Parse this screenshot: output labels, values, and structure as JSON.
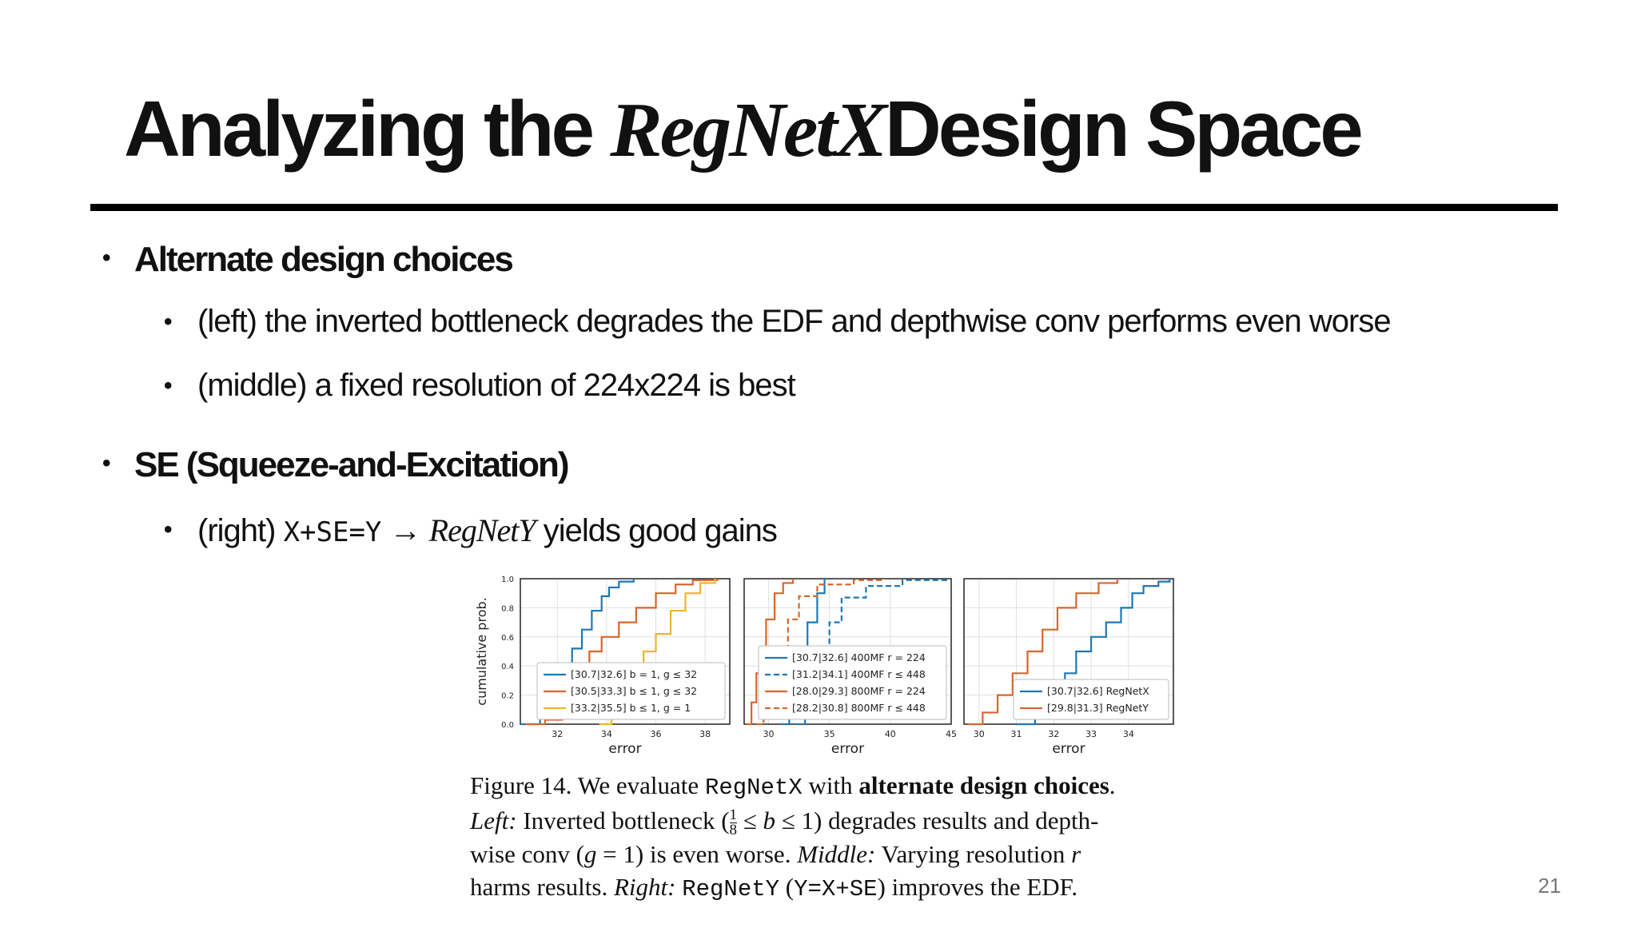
{
  "slide": {
    "title_pre": "Analyzing the ",
    "title_ital": "RegNetX",
    "title_post": "Design Space",
    "bullets": [
      {
        "text": "Alternate design choices"
      },
      {
        "text": "(left) the inverted bottleneck degrades the EDF and depthwise conv performs even worse"
      },
      {
        "text": "(middle) a fixed resolution of 224x224 is best"
      },
      {
        "text": "SE (Squeeze-and-Excitation)"
      },
      {
        "pre": "(right) ",
        "code": "X+SE=Y",
        "arrow": " → ",
        "ital": "RegNetY",
        "post": " yields good gains"
      }
    ],
    "page_number": "21"
  },
  "figure": {
    "caption": {
      "l1_a": "Figure 14. We evaluate ",
      "l1_code": "RegNetX",
      "l1_b": " with ",
      "l1_bold": "alternate design choices",
      "l1_c": ".",
      "l2_it": "Left:",
      "l2_a": " Inverted bottleneck (",
      "l2_frac_num": "1",
      "l2_frac_den": "8",
      "l2_b": " ≤ ",
      "l2_bvar": "b",
      "l2_c": " ≤ 1) degrades results and depth-",
      "l3_a": "wise conv (",
      "l3_g": "g",
      "l3_b": " = 1) is even worse. ",
      "l3_it": "Middle:",
      "l3_c": " Varying resolution ",
      "l3_r": "r",
      "l4_a": "harms results. ",
      "l4_it": "Right:",
      "l4_sp": " ",
      "l4_code": "RegNetY",
      "l4_b": " (",
      "l4_code2": "Y=X+SE",
      "l4_c": ") improves the EDF."
    },
    "colors": {
      "blue": "#1f77b4",
      "orange": "#d9652c",
      "yellow": "#f0b429"
    }
  },
  "chart_data": [
    {
      "type": "line",
      "xlabel": "error",
      "ylabel": "cumulative prob.",
      "xlim": [
        30.5,
        39
      ],
      "ylim": [
        0,
        1
      ],
      "xticks": [
        32,
        34,
        36,
        38
      ],
      "yticks": [
        "0.0",
        "0.2",
        "0.4",
        "0.6",
        "0.8",
        "1.0"
      ],
      "legend": "bottom-right",
      "series": [
        {
          "name": "[30.7|32.6] b = 1, g ≤ 32",
          "color": "#1f77b4",
          "dash": false,
          "x": [
            30.5,
            31.3,
            31.8,
            32.2,
            32.6,
            33.0,
            33.4,
            33.8,
            34.1,
            34.5,
            35.1
          ],
          "y": [
            0.0,
            0.04,
            0.12,
            0.3,
            0.52,
            0.65,
            0.78,
            0.88,
            0.94,
            0.98,
            1.0
          ]
        },
        {
          "name": "[30.5|33.3] b ≤ 1, g ≤ 32",
          "color": "#d9652c",
          "dash": false,
          "x": [
            30.7,
            31.5,
            32.2,
            32.9,
            33.3,
            33.8,
            34.5,
            35.2,
            36.0,
            36.8,
            37.5,
            38.5
          ],
          "y": [
            0.0,
            0.03,
            0.12,
            0.35,
            0.5,
            0.6,
            0.7,
            0.8,
            0.9,
            0.96,
            0.99,
            1.0
          ]
        },
        {
          "name": "[33.2|35.5] b ≤ 1, g = 1",
          "color": "#f0b429",
          "dash": false,
          "x": [
            33.7,
            34.2,
            34.7,
            35.2,
            35.5,
            36.0,
            36.6,
            37.2,
            37.8,
            38.4
          ],
          "y": [
            0.0,
            0.1,
            0.25,
            0.42,
            0.5,
            0.62,
            0.78,
            0.9,
            0.97,
            1.0
          ]
        }
      ]
    },
    {
      "type": "line",
      "xlabel": "error",
      "ylabel": "",
      "xlim": [
        28,
        45
      ],
      "ylim": [
        0,
        1
      ],
      "xticks": [
        30,
        35,
        40,
        45
      ],
      "legend": "bottom-right",
      "series": [
        {
          "name": "[30.7|32.6] 400MF r = 224",
          "color": "#1f77b4",
          "dash": false,
          "x": [
            31.0,
            31.7,
            32.2,
            32.6,
            33.2,
            34.0,
            34.6
          ],
          "y": [
            0.0,
            0.15,
            0.35,
            0.5,
            0.7,
            0.9,
            1.0
          ]
        },
        {
          "name": "[31.2|34.1] 400MF r ≤ 448",
          "color": "#1f77b4",
          "dash": true,
          "x": [
            32.2,
            33.0,
            33.6,
            34.1,
            35.0,
            36.0,
            38.0,
            41.0,
            44.8
          ],
          "y": [
            0.0,
            0.2,
            0.38,
            0.5,
            0.7,
            0.87,
            0.95,
            0.99,
            1.0
          ]
        },
        {
          "name": "[28.0|29.3] 800MF r = 224",
          "color": "#d9652c",
          "dash": false,
          "x": [
            28.2,
            28.6,
            29.0,
            29.3,
            29.8,
            30.5,
            31.2,
            32.0
          ],
          "y": [
            0.0,
            0.15,
            0.35,
            0.5,
            0.72,
            0.9,
            0.97,
            1.0
          ]
        },
        {
          "name": "[28.2|30.8] 800MF r ≤ 448",
          "color": "#d9652c",
          "dash": true,
          "x": [
            29.0,
            29.6,
            30.2,
            30.8,
            31.6,
            32.5,
            34.0,
            37.0,
            39.5
          ],
          "y": [
            0.0,
            0.15,
            0.33,
            0.5,
            0.72,
            0.88,
            0.96,
            0.99,
            1.0
          ]
        }
      ]
    },
    {
      "type": "line",
      "xlabel": "error",
      "ylabel": "",
      "xlim": [
        29.6,
        35.2
      ],
      "ylim": [
        0,
        1
      ],
      "xticks": [
        30,
        31,
        32,
        33,
        34
      ],
      "legend": "bottom-right",
      "series": [
        {
          "name": "[30.7|32.6] RegNetX",
          "color": "#1f77b4",
          "dash": false,
          "x": [
            31.0,
            31.5,
            31.9,
            32.3,
            32.6,
            33.0,
            33.4,
            33.8,
            34.1,
            34.4,
            34.8,
            35.1
          ],
          "y": [
            0.0,
            0.08,
            0.2,
            0.35,
            0.5,
            0.6,
            0.7,
            0.8,
            0.9,
            0.95,
            0.98,
            1.0
          ]
        },
        {
          "name": "[29.8|31.3] RegNetY",
          "color": "#d9652c",
          "dash": false,
          "x": [
            29.7,
            30.1,
            30.5,
            30.9,
            31.3,
            31.7,
            32.1,
            32.6,
            33.2,
            33.7
          ],
          "y": [
            0.0,
            0.08,
            0.2,
            0.35,
            0.5,
            0.65,
            0.8,
            0.9,
            0.97,
            1.0
          ]
        }
      ]
    }
  ]
}
